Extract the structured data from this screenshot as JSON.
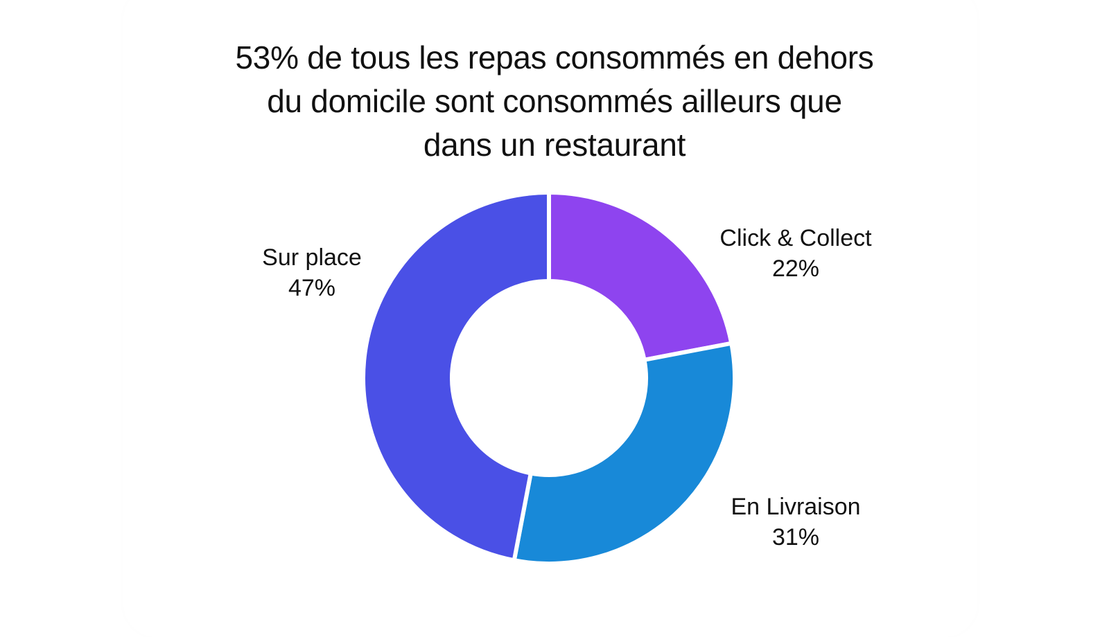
{
  "title_lines": [
    "53% de tous les repas consommés en dehors",
    "du domicile sont consommés ailleurs que",
    "dans un restaurant"
  ],
  "chart_data": {
    "type": "pie",
    "variant": "donut",
    "title": "53% de tous les repas consommés en dehors du domicile sont consommés ailleurs que dans un restaurant",
    "categories": [
      "Click & Collect",
      "En Livraison",
      "Sur place"
    ],
    "values": [
      22,
      31,
      47
    ],
    "value_labels": [
      "22%",
      "31%",
      "47%"
    ],
    "colors": [
      "#8e44ef",
      "#1889d8",
      "#4a50e6"
    ],
    "legend": "none",
    "start_angle": "top, clockwise"
  }
}
